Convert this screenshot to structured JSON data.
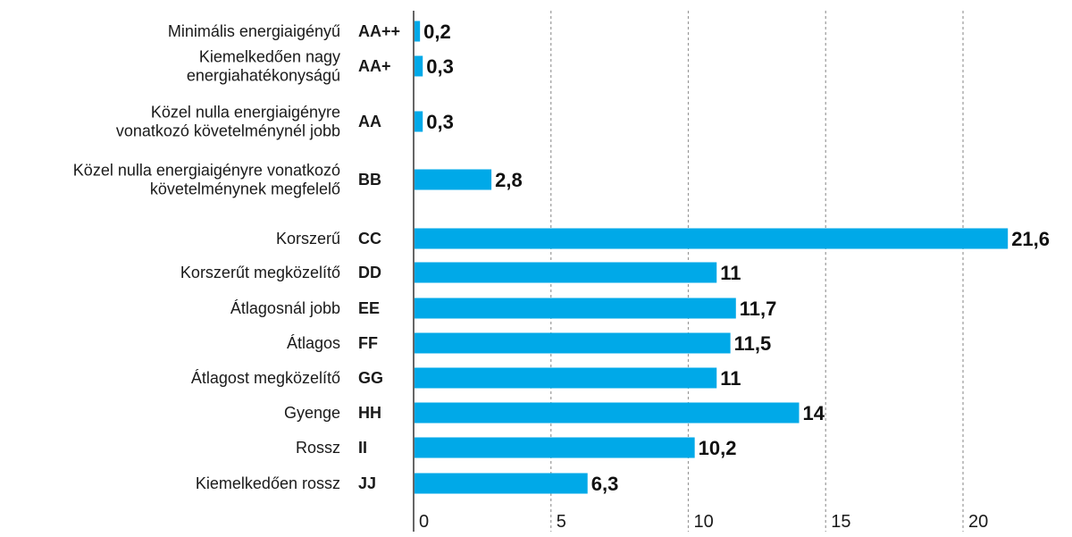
{
  "chart_data": {
    "type": "bar",
    "orientation": "horizontal",
    "categories": [
      [
        "Minimális energiaigényű"
      ],
      [
        "Kiemelkedően nagy",
        "energiahatékonyságú"
      ],
      [
        "Közel nulla energiaigényre",
        "vonatkozó követelménynél jobb"
      ],
      [
        "Közel nulla energiaigényre vonatkozó",
        "követelménynek megfelelő"
      ],
      [
        "Korszerű"
      ],
      [
        "Korszerűt megközelítő"
      ],
      [
        "Átlagosnál jobb"
      ],
      [
        "Átlagos"
      ],
      [
        "Átlagost megközelítő"
      ],
      [
        "Gyenge"
      ],
      [
        "Rossz"
      ],
      [
        "Kiemelkedően rossz"
      ]
    ],
    "codes": [
      "AA++",
      "AA+",
      "AA",
      "BB",
      "CC",
      "DD",
      "EE",
      "FF",
      "GG",
      "HH",
      "II",
      "JJ"
    ],
    "values": [
      0.2,
      0.3,
      0.3,
      2.8,
      21.6,
      11,
      11.7,
      11.5,
      11,
      14,
      10.2,
      6.3
    ],
    "value_labels": [
      "0,2",
      "0,3",
      "0,3",
      "2,8",
      "21,6",
      "11",
      "11,7",
      "11,5",
      "11",
      "14",
      "10,2",
      "6,3"
    ],
    "xlim": [
      0,
      22
    ],
    "xticks": [
      0,
      5,
      10,
      15,
      20
    ],
    "xtick_labels": [
      "0",
      "5",
      "10",
      "15",
      "20"
    ],
    "grid": "vertical dashed",
    "title": "",
    "xlabel": "",
    "ylabel": "",
    "colors": {
      "bar": "#00a9e8",
      "grid": "#9a9a9a",
      "axis": "#333333",
      "text": "#1a1a1a"
    }
  }
}
